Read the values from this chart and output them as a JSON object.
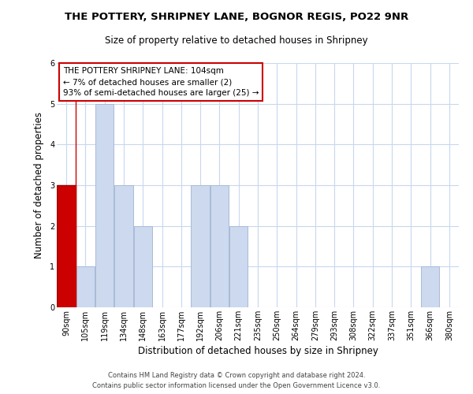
{
  "title1": "THE POTTERY, SHRIPNEY LANE, BOGNOR REGIS, PO22 9NR",
  "title2": "Size of property relative to detached houses in Shripney",
  "xlabel": "Distribution of detached houses by size in Shripney",
  "ylabel": "Number of detached properties",
  "bin_labels": [
    "90sqm",
    "105sqm",
    "119sqm",
    "134sqm",
    "148sqm",
    "163sqm",
    "177sqm",
    "192sqm",
    "206sqm",
    "221sqm",
    "235sqm",
    "250sqm",
    "264sqm",
    "279sqm",
    "293sqm",
    "308sqm",
    "322sqm",
    "337sqm",
    "351sqm",
    "366sqm",
    "380sqm"
  ],
  "bar_heights": [
    3,
    1,
    5,
    3,
    2,
    0,
    0,
    3,
    3,
    2,
    0,
    0,
    0,
    0,
    0,
    0,
    0,
    0,
    0,
    1,
    0
  ],
  "highlight_index": 0,
  "bar_color": "#ccd9ee",
  "bar_edge_color": "#aabbd8",
  "highlight_color": "#cc0000",
  "highlight_edge_color": "#990000",
  "annotation_text": "THE POTTERY SHRIPNEY LANE: 104sqm\n← 7% of detached houses are smaller (2)\n93% of semi-detached houses are larger (25) →",
  "annotation_box_color": "#ffffff",
  "annotation_border_color": "#cc0000",
  "ylim": [
    0,
    6
  ],
  "yticks": [
    0,
    1,
    2,
    3,
    4,
    5,
    6
  ],
  "footer1": "Contains HM Land Registry data © Crown copyright and database right 2024.",
  "footer2": "Contains public sector information licensed under the Open Government Licence v3.0.",
  "bg_color": "#ffffff",
  "grid_color": "#c8d8ee",
  "title1_fontsize": 9.5,
  "title2_fontsize": 8.5,
  "xlabel_fontsize": 8.5,
  "ylabel_fontsize": 8.5,
  "tick_fontsize": 7.0,
  "footer_fontsize": 6.0
}
